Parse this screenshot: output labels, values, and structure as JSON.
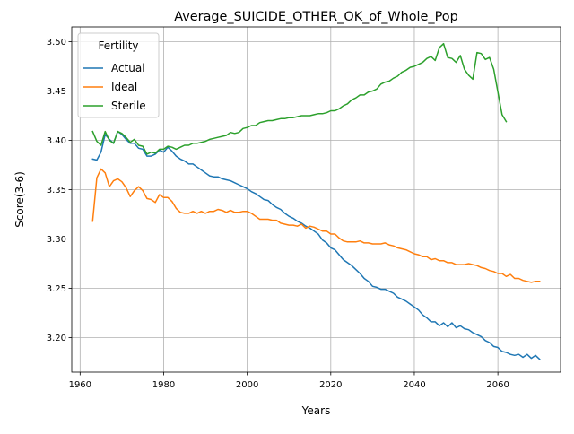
{
  "chart_data": {
    "type": "line",
    "title": "Average_SUICIDE_OTHER_OK_of_Whole_Pop",
    "xlabel": "Years",
    "ylabel": "Score(3-6)",
    "xlim": [
      1958,
      2075
    ],
    "ylim": [
      3.165,
      3.515
    ],
    "xticks": [
      1960,
      1980,
      2000,
      2020,
      2040,
      2060
    ],
    "yticks": [
      3.2,
      3.25,
      3.3,
      3.35,
      3.4,
      3.45,
      3.5
    ],
    "grid": true,
    "legend": {
      "title": "Fertility",
      "placement": "upper-left"
    },
    "series": [
      {
        "name": "Actual",
        "color": "#1f77b4",
        "x": [
          1963,
          1964,
          1965,
          1966,
          1967,
          1968,
          1969,
          1970,
          1971,
          1972,
          1973,
          1974,
          1975,
          1976,
          1977,
          1978,
          1979,
          1980,
          1981,
          1982,
          1983,
          1984,
          1985,
          1986,
          1987,
          1988,
          1989,
          1990,
          1991,
          1992,
          1993,
          1994,
          1995,
          1996,
          1997,
          1998,
          1999,
          2000,
          2001,
          2002,
          2003,
          2004,
          2005,
          2006,
          2007,
          2008,
          2009,
          2010,
          2011,
          2012,
          2013,
          2014,
          2015,
          2016,
          2017,
          2018,
          2019,
          2020,
          2021,
          2022,
          2023,
          2024,
          2025,
          2026,
          2027,
          2028,
          2029,
          2030,
          2031,
          2032,
          2033,
          2034,
          2035,
          2036,
          2037,
          2038,
          2039,
          2040,
          2041,
          2042,
          2043,
          2044,
          2045,
          2046,
          2047,
          2048,
          2049,
          2050,
          2051,
          2052,
          2053,
          2054,
          2055,
          2056,
          2057,
          2058,
          2059,
          2060,
          2061,
          2062,
          2063,
          2064,
          2065,
          2066,
          2067,
          2068,
          2069,
          2070
        ],
        "y": [
          3.381,
          3.38,
          3.388,
          3.406,
          3.401,
          3.397,
          3.409,
          3.406,
          3.401,
          3.397,
          3.397,
          3.392,
          3.391,
          3.384,
          3.384,
          3.386,
          3.39,
          3.388,
          3.393,
          3.389,
          3.384,
          3.381,
          3.379,
          3.376,
          3.376,
          3.373,
          3.37,
          3.367,
          3.364,
          3.363,
          3.363,
          3.361,
          3.36,
          3.359,
          3.357,
          3.355,
          3.353,
          3.351,
          3.348,
          3.346,
          3.343,
          3.34,
          3.339,
          3.335,
          3.332,
          3.33,
          3.326,
          3.323,
          3.321,
          3.318,
          3.316,
          3.313,
          3.311,
          3.308,
          3.305,
          3.299,
          3.296,
          3.291,
          3.289,
          3.284,
          3.279,
          3.276,
          3.273,
          3.269,
          3.265,
          3.26,
          3.257,
          3.252,
          3.251,
          3.249,
          3.249,
          3.247,
          3.245,
          3.241,
          3.239,
          3.237,
          3.234,
          3.231,
          3.228,
          3.223,
          3.22,
          3.216,
          3.216,
          3.212,
          3.215,
          3.211,
          3.215,
          3.21,
          3.212,
          3.209,
          3.208,
          3.205,
          3.203,
          3.201,
          3.197,
          3.195,
          3.191,
          3.19,
          3.186,
          3.185,
          3.183,
          3.182,
          3.183,
          3.18,
          3.183,
          3.179,
          3.182,
          3.178
        ]
      },
      {
        "name": "Ideal",
        "color": "#ff7f0e",
        "x": [
          1963,
          1964,
          1965,
          1966,
          1967,
          1968,
          1969,
          1970,
          1971,
          1972,
          1973,
          1974,
          1975,
          1976,
          1977,
          1978,
          1979,
          1980,
          1981,
          1982,
          1983,
          1984,
          1985,
          1986,
          1987,
          1988,
          1989,
          1990,
          1991,
          1992,
          1993,
          1994,
          1995,
          1996,
          1997,
          1998,
          1999,
          2000,
          2001,
          2002,
          2003,
          2004,
          2005,
          2006,
          2007,
          2008,
          2009,
          2010,
          2011,
          2012,
          2013,
          2014,
          2015,
          2016,
          2017,
          2018,
          2019,
          2020,
          2021,
          2022,
          2023,
          2024,
          2025,
          2026,
          2027,
          2028,
          2029,
          2030,
          2031,
          2032,
          2033,
          2034,
          2035,
          2036,
          2037,
          2038,
          2039,
          2040,
          2041,
          2042,
          2043,
          2044,
          2045,
          2046,
          2047,
          2048,
          2049,
          2050,
          2051,
          2052,
          2053,
          2054,
          2055,
          2056,
          2057,
          2058,
          2059,
          2060,
          2061,
          2062,
          2063,
          2064,
          2065,
          2066,
          2067,
          2068,
          2069,
          2070
        ],
        "y": [
          3.318,
          3.362,
          3.371,
          3.367,
          3.353,
          3.359,
          3.361,
          3.358,
          3.352,
          3.343,
          3.349,
          3.353,
          3.349,
          3.341,
          3.34,
          3.337,
          3.345,
          3.342,
          3.342,
          3.338,
          3.331,
          3.327,
          3.326,
          3.326,
          3.328,
          3.326,
          3.328,
          3.326,
          3.328,
          3.328,
          3.33,
          3.329,
          3.327,
          3.329,
          3.327,
          3.327,
          3.328,
          3.328,
          3.326,
          3.323,
          3.32,
          3.32,
          3.32,
          3.319,
          3.319,
          3.316,
          3.315,
          3.314,
          3.314,
          3.313,
          3.315,
          3.311,
          3.313,
          3.312,
          3.31,
          3.308,
          3.308,
          3.305,
          3.305,
          3.301,
          3.298,
          3.297,
          3.297,
          3.297,
          3.298,
          3.296,
          3.296,
          3.295,
          3.295,
          3.295,
          3.296,
          3.294,
          3.293,
          3.291,
          3.29,
          3.289,
          3.287,
          3.285,
          3.284,
          3.282,
          3.282,
          3.279,
          3.28,
          3.278,
          3.278,
          3.276,
          3.276,
          3.274,
          3.274,
          3.274,
          3.275,
          3.274,
          3.273,
          3.271,
          3.27,
          3.268,
          3.267,
          3.265,
          3.265,
          3.262,
          3.264,
          3.26,
          3.26,
          3.258,
          3.257,
          3.256,
          3.257,
          3.257
        ]
      },
      {
        "name": "Sterile",
        "color": "#2ca02c",
        "x": [
          1963,
          1964,
          1965,
          1966,
          1967,
          1968,
          1969,
          1970,
          1971,
          1972,
          1973,
          1974,
          1975,
          1976,
          1977,
          1978,
          1979,
          1980,
          1981,
          1982,
          1983,
          1984,
          1985,
          1986,
          1987,
          1988,
          1989,
          1990,
          1991,
          1992,
          1993,
          1994,
          1995,
          1996,
          1997,
          1998,
          1999,
          2000,
          2001,
          2002,
          2003,
          2004,
          2005,
          2006,
          2007,
          2008,
          2009,
          2010,
          2011,
          2012,
          2013,
          2014,
          2015,
          2016,
          2017,
          2018,
          2019,
          2020,
          2021,
          2022,
          2023,
          2024,
          2025,
          2026,
          2027,
          2028,
          2029,
          2030,
          2031,
          2032,
          2033,
          2034,
          2035,
          2036,
          2037,
          2038,
          2039,
          2040,
          2041,
          2042,
          2043,
          2044,
          2045,
          2046,
          2047,
          2048,
          2049,
          2050,
          2051,
          2052,
          2053,
          2054,
          2055,
          2056,
          2057,
          2058,
          2059,
          2060,
          2061,
          2062
        ],
        "y": [
          3.409,
          3.399,
          3.395,
          3.409,
          3.4,
          3.397,
          3.409,
          3.407,
          3.403,
          3.398,
          3.401,
          3.395,
          3.394,
          3.386,
          3.388,
          3.387,
          3.391,
          3.391,
          3.394,
          3.393,
          3.391,
          3.393,
          3.395,
          3.395,
          3.397,
          3.397,
          3.398,
          3.399,
          3.401,
          3.402,
          3.403,
          3.404,
          3.405,
          3.408,
          3.407,
          3.408,
          3.412,
          3.413,
          3.415,
          3.415,
          3.418,
          3.419,
          3.42,
          3.42,
          3.421,
          3.422,
          3.422,
          3.423,
          3.423,
          3.424,
          3.425,
          3.425,
          3.425,
          3.426,
          3.427,
          3.427,
          3.428,
          3.43,
          3.43,
          3.432,
          3.435,
          3.437,
          3.441,
          3.443,
          3.446,
          3.446,
          3.449,
          3.45,
          3.452,
          3.457,
          3.459,
          3.46,
          3.463,
          3.465,
          3.469,
          3.471,
          3.474,
          3.475,
          3.477,
          3.479,
          3.483,
          3.485,
          3.481,
          3.494,
          3.498,
          3.484,
          3.483,
          3.479,
          3.486,
          3.472,
          3.466,
          3.462,
          3.489,
          3.488,
          3.482,
          3.484,
          3.472,
          3.449,
          3.426,
          3.419
        ]
      }
    ]
  }
}
